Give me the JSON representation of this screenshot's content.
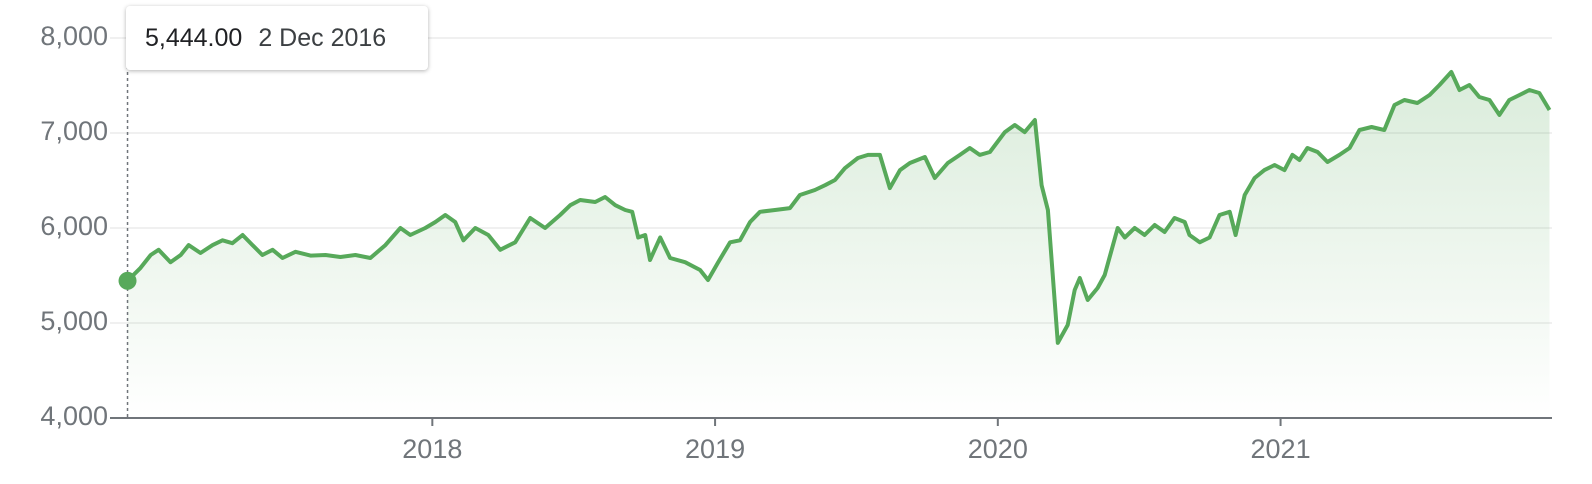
{
  "chart_data": {
    "type": "line",
    "x": [
      2016.922,
      2016.968,
      2017.004,
      2017.032,
      2017.074,
      2017.11,
      2017.138,
      2017.18,
      2017.223,
      2017.258,
      2017.293,
      2017.329,
      2017.364,
      2017.399,
      2017.435,
      2017.47,
      2017.516,
      2017.569,
      2017.622,
      2017.675,
      2017.728,
      2017.781,
      2017.834,
      2017.887,
      2017.922,
      2017.975,
      2018.011,
      2018.046,
      2018.081,
      2018.11,
      2018.152,
      2018.198,
      2018.24,
      2018.293,
      2018.346,
      2018.399,
      2018.452,
      2018.488,
      2018.523,
      2018.576,
      2018.611,
      2018.647,
      2018.682,
      2018.707,
      2018.728,
      2018.753,
      2018.77,
      2018.806,
      2018.841,
      2018.894,
      2018.947,
      2018.975,
      2019.011,
      2019.053,
      2019.088,
      2019.124,
      2019.159,
      2019.212,
      2019.265,
      2019.3,
      2019.353,
      2019.389,
      2019.424,
      2019.459,
      2019.505,
      2019.541,
      2019.583,
      2019.618,
      2019.654,
      2019.689,
      2019.742,
      2019.777,
      2019.823,
      2019.866,
      2019.901,
      2019.936,
      2019.972,
      2020.025,
      2020.06,
      2020.095,
      2020.131,
      2020.155,
      2020.177,
      2020.212,
      2020.247,
      2020.272,
      2020.29,
      2020.318,
      2020.353,
      2020.378,
      2020.424,
      2020.449,
      2020.484,
      2020.519,
      2020.555,
      2020.59,
      2020.625,
      2020.661,
      2020.678,
      2020.714,
      2020.749,
      2020.784,
      2020.82,
      2020.841,
      2020.873,
      2020.908,
      2020.943,
      2020.979,
      2021.014,
      2021.042,
      2021.067,
      2021.095,
      2021.131,
      2021.166,
      2021.208,
      2021.244,
      2021.279,
      2021.322,
      2021.367,
      2021.403,
      2021.438,
      2021.484,
      2021.527,
      2021.562,
      2021.604,
      2021.633,
      2021.668,
      2021.703,
      2021.739,
      2021.774,
      2021.809,
      2021.845,
      2021.88,
      2021.915,
      2021.951
    ],
    "series": [
      {
        "color": "#57a95a",
        "values": [
          5444,
          5580,
          5716,
          5770,
          5640,
          5716,
          5820,
          5737,
          5820,
          5870,
          5840,
          5926,
          5820,
          5716,
          5770,
          5684,
          5750,
          5710,
          5716,
          5695,
          5716,
          5684,
          5820,
          6000,
          5926,
          6000,
          6063,
          6137,
          6063,
          5870,
          6000,
          5926,
          5770,
          5850,
          6105,
          6000,
          6137,
          6240,
          6295,
          6274,
          6326,
          6240,
          6190,
          6170,
          5900,
          5926,
          5663,
          5900,
          5684,
          5640,
          5558,
          5453,
          5640,
          5850,
          5870,
          6063,
          6170,
          6190,
          6210,
          6347,
          6400,
          6450,
          6505,
          6630,
          6737,
          6770,
          6770,
          6420,
          6610,
          6684,
          6747,
          6526,
          6684,
          6770,
          6842,
          6770,
          6800,
          7010,
          7084,
          7010,
          7137,
          6450,
          6190,
          4790,
          4979,
          5347,
          5474,
          5242,
          5368,
          5505,
          6000,
          5900,
          6000,
          5926,
          6032,
          5958,
          6105,
          6063,
          5926,
          5850,
          5900,
          6137,
          6170,
          5926,
          6347,
          6526,
          6610,
          6663,
          6610,
          6770,
          6716,
          6842,
          6800,
          6695,
          6770,
          6842,
          7032,
          7063,
          7032,
          7295,
          7347,
          7316,
          7400,
          7505,
          7642,
          7453,
          7505,
          7379,
          7347,
          7190,
          7347,
          7400,
          7453,
          7421,
          7242
        ]
      }
    ],
    "xlim": [
      2016.86,
      2021.96
    ],
    "xticks": [
      2018,
      2019,
      2020,
      2021
    ],
    "ylim": [
      4000,
      8000
    ],
    "yticks": [
      {
        "value": 4000,
        "label": "4,000"
      },
      {
        "value": 5000,
        "label": "5,000"
      },
      {
        "value": 6000,
        "label": "6,000"
      },
      {
        "value": 7000,
        "label": "7,000"
      },
      {
        "value": 8000,
        "label": "8,000"
      }
    ],
    "grid": true,
    "tooltip": {
      "value_label": "5,444.00",
      "date": "2 Dec 2016"
    }
  }
}
